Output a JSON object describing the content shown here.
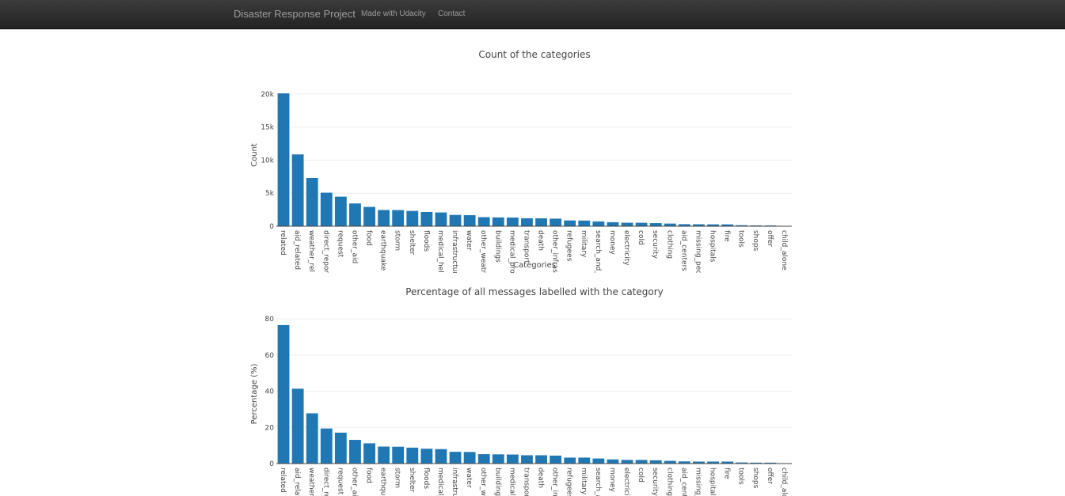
{
  "navbar": {
    "brand": "Disaster Response Project",
    "links": [
      {
        "label": "Made with Udacity"
      },
      {
        "label": "Contact"
      }
    ]
  },
  "colors": {
    "bar": "#1f77b4",
    "navbar_bg": "#222222",
    "navbar_text": "#9d9d9d",
    "grid": "#eeeeee"
  },
  "chart_data": [
    {
      "type": "bar",
      "title": "Count of the categories",
      "xlabel": "Categories",
      "ylabel": "Count",
      "ylim": [
        0,
        20094
      ],
      "yticks": [
        0,
        5000,
        10000,
        15000,
        20000
      ],
      "ytick_labels": [
        "0",
        "5k",
        "10k",
        "15k",
        "20k"
      ],
      "grid": true,
      "categories": [
        "related",
        "aid_related",
        "weather_rel",
        "direct_repor",
        "request",
        "other_aid",
        "food",
        "earthquake",
        "storm",
        "shelter",
        "floods",
        "medical_hel",
        "infrastructur",
        "water",
        "other_weatr",
        "buildings",
        "medical_pro",
        "transport",
        "death",
        "other_infras",
        "refugees",
        "military",
        "search_and_",
        "money",
        "electricity",
        "cold",
        "security",
        "clothing",
        "aid_centers",
        "missing_pec",
        "hospitals",
        "fire",
        "tools",
        "shops",
        "offer",
        "child_alone"
      ],
      "values": [
        20094,
        10860,
        7297,
        5075,
        4474,
        3446,
        2923,
        2455,
        2443,
        2314,
        2155,
        2084,
        1705,
        1672,
        1376,
        1333,
        1313,
        1201,
        1194,
        1151,
        875,
        860,
        724,
        604,
        532,
        530,
        471,
        405,
        309,
        298,
        283,
        282,
        159,
        120,
        118,
        0
      ]
    },
    {
      "type": "bar",
      "title": "Percentage of all messages labelled with the category",
      "xlabel": "",
      "ylabel": "Percentage (%)",
      "ylim": [
        0,
        77
      ],
      "yticks": [
        0,
        20,
        40,
        60,
        80
      ],
      "ytick_labels": [
        "0",
        "20",
        "40",
        "60",
        "80"
      ],
      "grid": true,
      "categories": [
        "related",
        "aid_relat",
        "weather_",
        "direct_re",
        "request",
        "other_aic",
        "food",
        "earthqua",
        "storm",
        "shelter",
        "floods",
        "medical_",
        "infrastru",
        "water",
        "other_we",
        "buildings",
        "medical_",
        "transport",
        "death",
        "other_inf",
        "refugees",
        "military",
        "search_a",
        "money",
        "electricity",
        "cold",
        "security",
        "clothing",
        "aid_cente",
        "missing_",
        "hospitals",
        "fire",
        "tools",
        "shops",
        "offer",
        "child_alo"
      ],
      "values": [
        76.6,
        41.4,
        27.8,
        19.4,
        17.1,
        13.1,
        11.2,
        9.4,
        9.3,
        8.8,
        8.2,
        8.0,
        6.5,
        6.4,
        5.2,
        5.1,
        5.0,
        4.6,
        4.6,
        4.4,
        3.3,
        3.3,
        2.8,
        2.3,
        2.0,
        2.0,
        1.8,
        1.5,
        1.2,
        1.1,
        1.1,
        1.1,
        0.6,
        0.5,
        0.5,
        0.0
      ]
    }
  ]
}
